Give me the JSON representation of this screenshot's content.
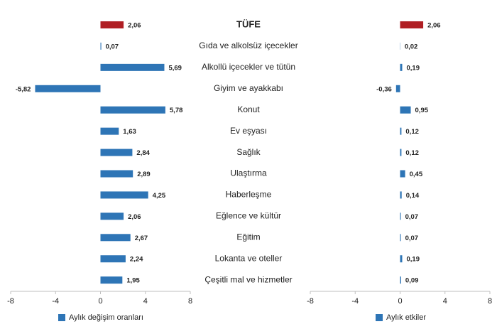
{
  "chart_data": {
    "type": "bar",
    "orientation": "horizontal",
    "categories": [
      "TÜFE",
      "Gıda ve alkolsüz içecekler",
      "Alkollü içecekler ve tütün",
      "Giyim ve ayakkabı",
      "Konut",
      "Ev eşyası",
      "Sağlık",
      "Ulaştırma",
      "Haberleşme",
      "Eğlence ve kültür",
      "Eğitim",
      "Lokanta ve oteller",
      "Çeşitli mal ve hizmetler"
    ],
    "series": [
      {
        "name": "Aylık değişim oranları",
        "color": "#2e75b6",
        "colors": [
          "#b01f24",
          "#2e75b6",
          "#2e75b6",
          "#2e75b6",
          "#2e75b6",
          "#2e75b6",
          "#2e75b6",
          "#2e75b6",
          "#2e75b6",
          "#2e75b6",
          "#2e75b6",
          "#2e75b6",
          "#2e75b6"
        ],
        "values": [
          2.06,
          0.07,
          5.69,
          -5.82,
          5.78,
          1.63,
          2.84,
          2.89,
          4.25,
          2.06,
          2.67,
          2.24,
          1.95
        ],
        "value_labels": [
          "2,06",
          "0,07",
          "5,69",
          "-5,82",
          "5,78",
          "1,63",
          "2,84",
          "2,89",
          "4,25",
          "2,06",
          "2,67",
          "2,24",
          "1,95"
        ]
      },
      {
        "name": "Aylık etkiler",
        "color": "#2e75b6",
        "colors": [
          "#b01f24",
          "#2e75b6",
          "#2e75b6",
          "#2e75b6",
          "#2e75b6",
          "#2e75b6",
          "#2e75b6",
          "#2e75b6",
          "#2e75b6",
          "#2e75b6",
          "#2e75b6",
          "#2e75b6",
          "#2e75b6"
        ],
        "values": [
          2.06,
          0.02,
          0.19,
          -0.36,
          0.95,
          0.12,
          0.12,
          0.45,
          0.14,
          0.07,
          0.07,
          0.19,
          0.09
        ],
        "value_labels": [
          "2,06",
          "0,02",
          "0,19",
          "-0,36",
          "0,95",
          "0,12",
          "0,12",
          "0,45",
          "0,14",
          "0,07",
          "0,07",
          "0,19",
          "0,09"
        ]
      }
    ],
    "xlim": [
      -8,
      8
    ],
    "xticks": [
      -8,
      -4,
      0,
      4,
      8
    ],
    "legend": "bottom"
  }
}
